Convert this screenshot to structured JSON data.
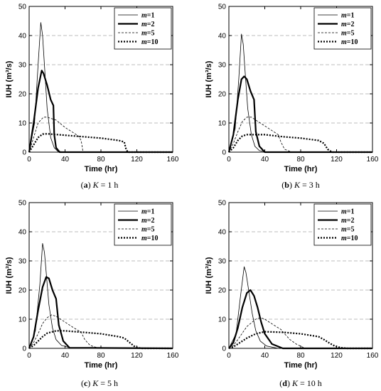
{
  "chart_data": [
    {
      "type": "line",
      "caption": {
        "letter": "a",
        "var": "K",
        "rest": " = 1 h"
      },
      "xlabel": "Time (hr)",
      "ylabel": "IUH (m³/s)",
      "xlim": [
        0,
        160
      ],
      "ylim": [
        0,
        50
      ],
      "xticks": [
        "0",
        "40",
        "80",
        "120",
        "160"
      ],
      "yticks": [
        "0",
        "10",
        "20",
        "30",
        "40",
        "50"
      ],
      "grid": "horizontal dashed",
      "legend_position": "top-right",
      "series": [
        {
          "name": "m=1",
          "style": "thin-solid",
          "x": [
            0,
            6,
            10,
            13,
            15,
            17,
            20,
            24,
            28,
            32,
            40,
            160
          ],
          "y": [
            0,
            10,
            30,
            44.5,
            40,
            30,
            15,
            5,
            1.5,
            0.3,
            0,
            0
          ]
        },
        {
          "name": "m=2",
          "style": "thick-solid",
          "x": [
            0,
            5,
            10,
            14,
            16,
            20,
            24,
            27,
            28,
            30,
            34,
            160
          ],
          "y": [
            0,
            10,
            22,
            28,
            27,
            23,
            18,
            16,
            6,
            1.5,
            0,
            0
          ]
        },
        {
          "name": "m=5",
          "style": "thin-dashed",
          "x": [
            0,
            5,
            10,
            16,
            20,
            30,
            40,
            50,
            55,
            58,
            60,
            160
          ],
          "y": [
            0,
            5,
            10,
            12,
            12,
            11,
            8.5,
            6.5,
            5.5,
            4,
            0,
            0
          ]
        },
        {
          "name": "m=10",
          "style": "thick-dotted",
          "x": [
            0,
            5,
            10,
            15,
            20,
            40,
            60,
            80,
            100,
            106,
            108,
            110,
            160
          ],
          "y": [
            0,
            2.5,
            5,
            6.2,
            6.3,
            5.8,
            5.3,
            4.8,
            4,
            3.5,
            1,
            0,
            0
          ]
        }
      ]
    },
    {
      "type": "line",
      "caption": {
        "letter": "b",
        "var": "K",
        "rest": " = 3 h"
      },
      "xlabel": "Time (hr)",
      "ylabel": "IUH (m³/s)",
      "xlim": [
        0,
        160
      ],
      "ylim": [
        0,
        50
      ],
      "xticks": [
        "0",
        "40",
        "80",
        "120",
        "160"
      ],
      "yticks": [
        "0",
        "10",
        "20",
        "30",
        "40",
        "50"
      ],
      "grid": "horizontal dashed",
      "legend_position": "top-right",
      "series": [
        {
          "name": "m=1",
          "style": "thin-solid",
          "x": [
            0,
            7,
            11,
            14,
            16,
            18,
            21,
            25,
            29,
            34,
            44,
            160
          ],
          "y": [
            0,
            8,
            25,
            40.5,
            37,
            28,
            15,
            6,
            2,
            0.5,
            0,
            0
          ]
        },
        {
          "name": "m=2",
          "style": "thick-solid",
          "x": [
            0,
            5,
            10,
            14,
            17,
            20,
            24,
            28,
            30,
            34,
            40,
            160
          ],
          "y": [
            0,
            6,
            18,
            25,
            26,
            25,
            21,
            18,
            7,
            2,
            0,
            0
          ]
        },
        {
          "name": "m=5",
          "style": "thin-dashed",
          "x": [
            0,
            5,
            10,
            15,
            20,
            25,
            35,
            45,
            55,
            58,
            62,
            70,
            160
          ],
          "y": [
            0,
            3,
            7,
            10.5,
            12,
            12,
            10,
            8,
            6,
            3.5,
            1,
            0,
            0
          ]
        },
        {
          "name": "m=10",
          "style": "thick-dotted",
          "x": [
            0,
            5,
            10,
            15,
            20,
            40,
            60,
            80,
            100,
            106,
            110,
            115,
            160
          ],
          "y": [
            0,
            1.5,
            4,
            5.5,
            6,
            6,
            5.3,
            4.8,
            4,
            3,
            1,
            0,
            0
          ]
        }
      ]
    },
    {
      "type": "line",
      "caption": {
        "letter": "c",
        "var": "K",
        "rest": " = 5 h"
      },
      "xlabel": "Time (hr)",
      "ylabel": "IUH (m³/s)",
      "xlim": [
        0,
        160
      ],
      "ylim": [
        0,
        50
      ],
      "xticks": [
        "0",
        "40",
        "80",
        "120",
        "160"
      ],
      "yticks": [
        "0",
        "10",
        "20",
        "30",
        "40",
        "50"
      ],
      "grid": "horizontal dashed",
      "legend_position": "top-right",
      "series": [
        {
          "name": "m=1",
          "style": "thin-solid",
          "x": [
            0,
            7,
            12,
            15,
            17,
            19,
            22,
            26,
            30,
            36,
            48,
            160
          ],
          "y": [
            0,
            6,
            22,
            36,
            33,
            26,
            15,
            7,
            3,
            1,
            0,
            0
          ]
        },
        {
          "name": "m=2",
          "style": "thick-solid",
          "x": [
            0,
            5,
            10,
            15,
            19,
            22,
            26,
            30,
            33,
            38,
            45,
            160
          ],
          "y": [
            0,
            4,
            13,
            21,
            24.5,
            24,
            20,
            17,
            8,
            2.5,
            0.2,
            0
          ]
        },
        {
          "name": "m=5",
          "style": "thin-dashed",
          "x": [
            0,
            5,
            10,
            15,
            20,
            25,
            30,
            40,
            50,
            58,
            62,
            68,
            78,
            160
          ],
          "y": [
            0,
            2,
            5,
            8.5,
            10.5,
            11.5,
            11,
            9,
            7,
            5.5,
            3,
            1,
            0,
            0
          ]
        },
        {
          "name": "m=10",
          "style": "thick-dotted",
          "x": [
            0,
            5,
            10,
            15,
            20,
            30,
            40,
            60,
            80,
            100,
            106,
            112,
            118,
            125,
            160
          ],
          "y": [
            0,
            1,
            2.5,
            4,
            5.2,
            6,
            6,
            5.5,
            5,
            4,
            3.5,
            2,
            0.5,
            0,
            0
          ]
        }
      ]
    },
    {
      "type": "line",
      "caption": {
        "letter": "d",
        "var": "K",
        "rest": " = 10 h"
      },
      "xlabel": "Time (hr)",
      "ylabel": "IUH (m³/s)",
      "xlim": [
        0,
        160
      ],
      "ylim": [
        0,
        50
      ],
      "xticks": [
        "0",
        "40",
        "80",
        "120",
        "160"
      ],
      "yticks": [
        "0",
        "10",
        "20",
        "30",
        "40",
        "50"
      ],
      "grid": "horizontal dashed",
      "legend_position": "top-right",
      "series": [
        {
          "name": "m=1",
          "style": "thin-solid",
          "x": [
            0,
            8,
            13,
            17,
            19,
            22,
            26,
            30,
            35,
            42,
            55,
            160
          ],
          "y": [
            0,
            5,
            18,
            28,
            26,
            20,
            12,
            6,
            2.5,
            0.8,
            0,
            0
          ]
        },
        {
          "name": "m=2",
          "style": "thick-solid",
          "x": [
            0,
            5,
            10,
            15,
            20,
            24,
            28,
            32,
            36,
            40,
            48,
            60,
            160
          ],
          "y": [
            0,
            2,
            7,
            14,
            19,
            20,
            18,
            14,
            9,
            5,
            1.5,
            0,
            0
          ]
        },
        {
          "name": "m=5",
          "style": "thin-dashed",
          "x": [
            0,
            5,
            10,
            20,
            30,
            35,
            40,
            50,
            58,
            62,
            68,
            75,
            85,
            160
          ],
          "y": [
            0,
            1,
            3,
            7.5,
            10,
            10.5,
            10,
            8,
            6.5,
            5,
            3,
            1.5,
            0,
            0
          ]
        },
        {
          "name": "m=10",
          "style": "thick-dotted",
          "x": [
            0,
            5,
            10,
            20,
            30,
            40,
            60,
            80,
            100,
            106,
            112,
            118,
            125,
            132,
            160
          ],
          "y": [
            0,
            0.5,
            1.5,
            3.5,
            5,
            5.7,
            5.5,
            5,
            4,
            3,
            1.8,
            0.8,
            0.2,
            0,
            0
          ]
        }
      ]
    }
  ]
}
